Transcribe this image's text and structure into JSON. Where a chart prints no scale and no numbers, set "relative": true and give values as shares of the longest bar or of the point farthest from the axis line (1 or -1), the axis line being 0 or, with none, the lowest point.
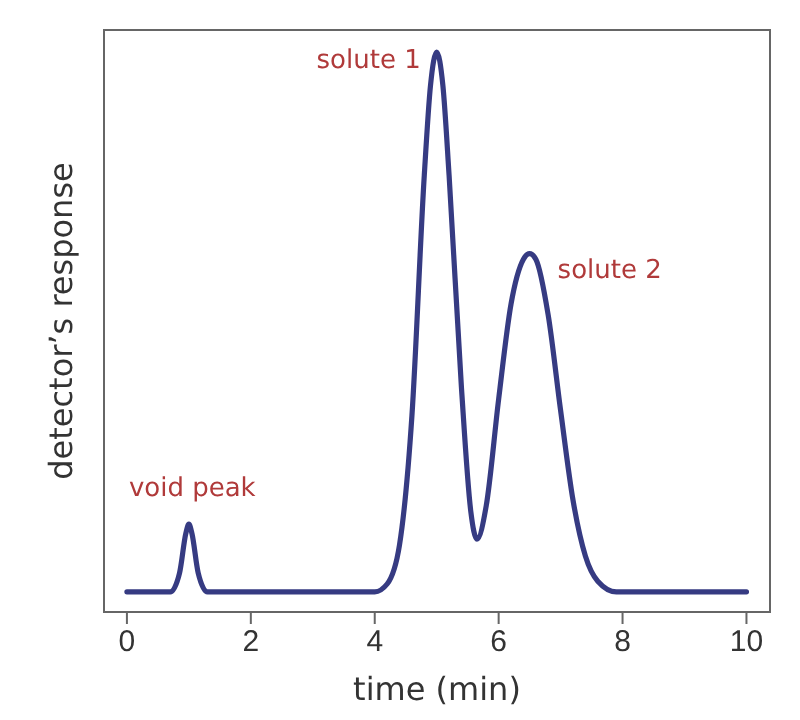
{
  "chart_data": {
    "type": "line",
    "relative": true,
    "xlabel": "time (min)",
    "ylabel": "detector’s response",
    "xlim": [
      -0.37,
      10.38
    ],
    "xticks": [
      0,
      2,
      4,
      6,
      8,
      10
    ],
    "grid": false,
    "marker": "none",
    "line_style": "solid",
    "x": [
      0,
      0.7,
      0.85,
      0.95,
      1.0,
      1.05,
      1.15,
      1.3,
      4.0,
      4.2,
      4.4,
      4.6,
      4.8,
      4.9,
      5.0,
      5.1,
      5.2,
      5.4,
      5.55,
      5.65,
      5.8,
      6.0,
      6.2,
      6.4,
      6.5,
      6.6,
      6.8,
      7.0,
      7.2,
      7.4,
      7.6,
      7.9,
      10
    ],
    "series": [
      {
        "color": "#363b82",
        "values": [
          0.036,
          0.036,
          0.07,
          0.14,
          0.157,
          0.14,
          0.07,
          0.036,
          0.036,
          0.05,
          0.12,
          0.35,
          0.78,
          0.94,
          1.0,
          0.94,
          0.78,
          0.4,
          0.18,
          0.13,
          0.19,
          0.38,
          0.55,
          0.63,
          0.64,
          0.63,
          0.53,
          0.36,
          0.2,
          0.1,
          0.055,
          0.036,
          0.036
        ]
      }
    ],
    "annotations": [
      {
        "text": "void peak",
        "x": 1.0,
        "y": 0.157
      },
      {
        "text": "solute 1",
        "x": 5.0,
        "y": 1.0
      },
      {
        "text": "solute 2",
        "x": 6.5,
        "y": 0.64
      }
    ]
  }
}
